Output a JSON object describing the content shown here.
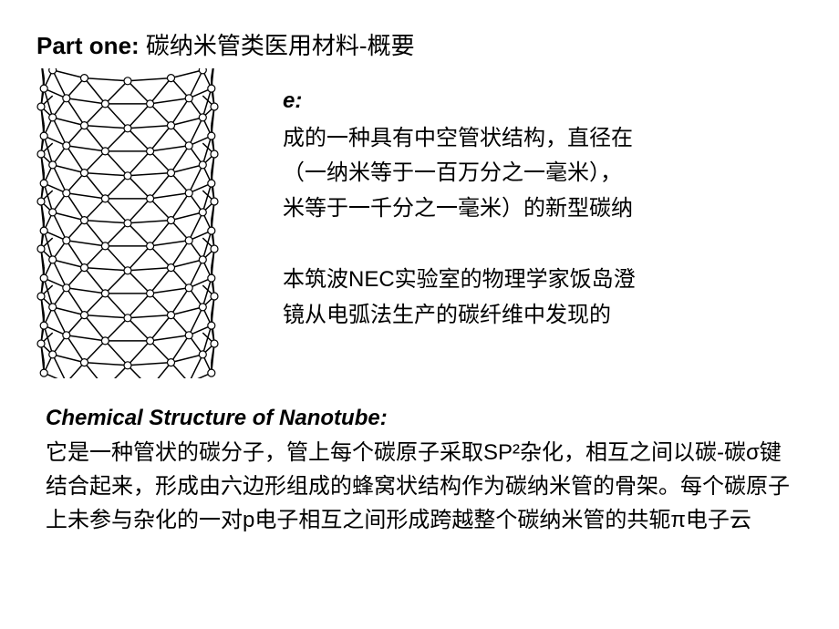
{
  "page": {
    "title_bold": "Part one: ",
    "title_rest": "碳纳米管类医用材料-概要"
  },
  "section1": {
    "heading_fragment": "e:",
    "line1": "成的一种具有中空管状结构，直径在",
    "line2": "（一纳米等于一百万分之一毫米），",
    "line3": "米等于一千分之一毫米）的新型碳纳",
    "line4": "本筑波NEC实验室的物理学家饭岛澄",
    "line5": "镜从电弧法生产的碳纤维中发现的"
  },
  "section2": {
    "heading": "Chemical Structure of Nanotube:",
    "body": "它是一种管状的碳分子，管上每个碳原子采取SP²杂化，相互之间以碳-碳σ键结合起来，形成由六边形组成的蜂窝状结构作为碳纳米管的骨架。每个碳原子上未参与杂化的一对p电子相互之间形成跨越整个碳纳米管的共轭π电子云"
  },
  "diagram": {
    "type": "nanotube-wireframe",
    "stroke_color": "#000000",
    "node_fill": "#ffffff",
    "node_stroke": "#000000",
    "stroke_width": 1.5,
    "node_radius": 4,
    "background": "#ffffff"
  }
}
